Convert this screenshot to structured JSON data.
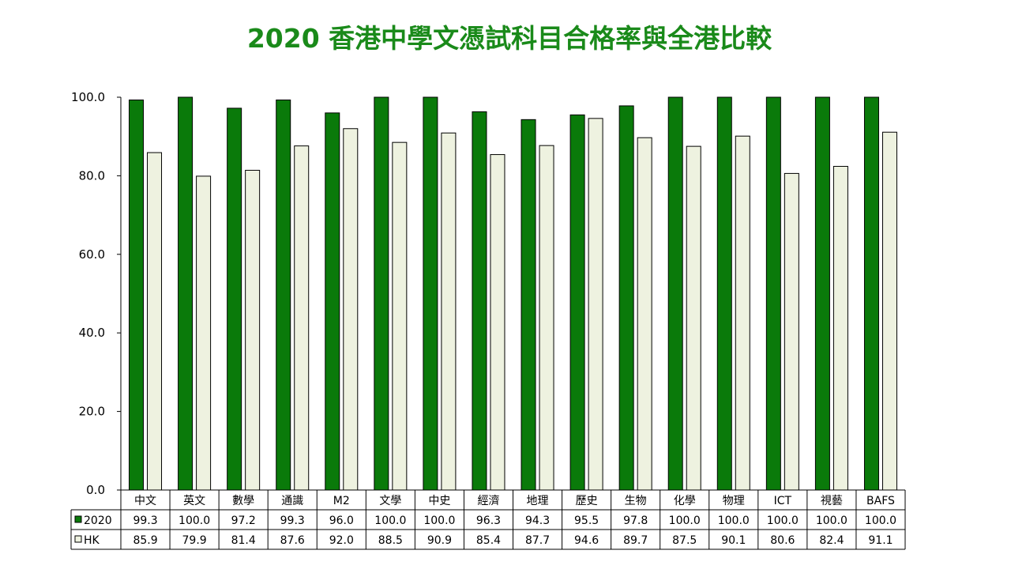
{
  "chart_data": {
    "type": "bar",
    "title": "2020 香港中學文憑試科目合格率與全港比較",
    "categories": [
      "中文",
      "英文",
      "數學",
      "通識",
      "M2",
      "文學",
      "中史",
      "經濟",
      "地理",
      "歷史",
      "生物",
      "化學",
      "物理",
      "ICT",
      "視藝",
      "BAFS"
    ],
    "series": [
      {
        "name": "2020",
        "color": "#0a7a0a",
        "values": [
          99.3,
          100.0,
          97.2,
          99.3,
          96.0,
          100.0,
          100.0,
          96.3,
          94.3,
          95.5,
          97.8,
          100.0,
          100.0,
          100.0,
          100.0,
          100.0
        ],
        "labels": [
          "99.3",
          "100.0",
          "97.2",
          "99.3",
          "96.0",
          "100.0",
          "100.0",
          "96.3",
          "94.3",
          "95.5",
          "97.8",
          "100.0",
          "100.0",
          "100.0",
          "100.0",
          "100.0"
        ]
      },
      {
        "name": "HK",
        "color": "#eef2e0",
        "values": [
          85.9,
          79.9,
          81.4,
          87.6,
          92.0,
          88.5,
          90.9,
          85.4,
          87.7,
          94.6,
          89.7,
          87.5,
          90.1,
          80.6,
          82.4,
          91.1
        ],
        "labels": [
          "85.9",
          "79.9",
          "81.4",
          "87.6",
          "92.0",
          "88.5",
          "90.9",
          "85.4",
          "87.7",
          "94.6",
          "89.7",
          "87.5",
          "90.1",
          "80.6",
          "82.4",
          "91.1"
        ]
      }
    ],
    "ylim": [
      0,
      100
    ],
    "yticks": [
      "0.0",
      "20.0",
      "40.0",
      "60.0",
      "80.0",
      "100.0"
    ],
    "grid": false,
    "legend": "data-table"
  }
}
